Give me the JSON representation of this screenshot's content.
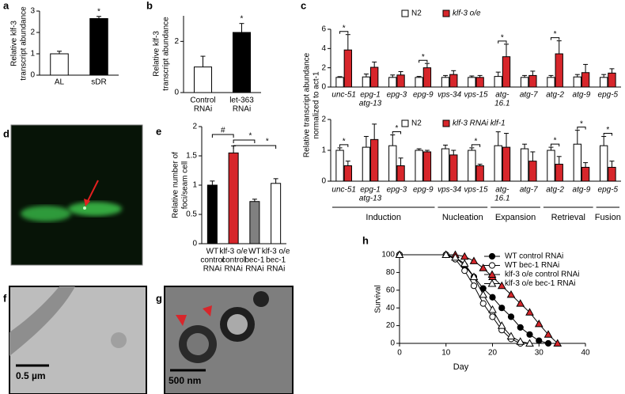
{
  "chart_data": [
    {
      "type": "bar",
      "panel": "a",
      "ylabel": [
        "Relative klf-3",
        "transcript abundance"
      ],
      "categories": [
        "AL",
        "sDR"
      ],
      "values": [
        1.0,
        2.65
      ],
      "errors": [
        0.12,
        0.1
      ],
      "colors": [
        "#ffffff",
        "#000000"
      ],
      "significance": [
        null,
        "*"
      ],
      "ylim": [
        0,
        3
      ],
      "yticks": [
        0,
        1,
        2,
        3
      ]
    },
    {
      "type": "bar",
      "panel": "b",
      "ylabel": [
        "Relative klf-3",
        "transcript abundance"
      ],
      "categories": [
        [
          "Control",
          "RNAi"
        ],
        [
          "let-363",
          "RNAi"
        ]
      ],
      "values": [
        1.0,
        2.35
      ],
      "errors": [
        0.42,
        0.35
      ],
      "colors": [
        "#ffffff",
        "#000000"
      ],
      "significance": [
        null,
        "*"
      ],
      "ylim": [
        0,
        3
      ],
      "yticks": [
        0,
        2
      ]
    },
    {
      "type": "bar",
      "panel": "c",
      "ylabel": [
        "Relative transcript abundance",
        "normalized to act-1"
      ],
      "categories": [
        [
          "unc-51"
        ],
        [
          "epg-1",
          "atg-13"
        ],
        [
          "epg-3"
        ],
        [
          "epg-9"
        ],
        [
          "vps-34"
        ],
        [
          "vps-15"
        ],
        [
          "atg-",
          "16.1"
        ],
        [
          "atg-7"
        ],
        [
          "atg-2"
        ],
        [
          "atg-9"
        ],
        [
          "epg-5"
        ]
      ],
      "series": [
        {
          "name": "N2",
          "color": "#ffffff",
          "values": [
            1.0,
            1.05,
            1.0,
            1.0,
            1.0,
            1.0,
            1.1,
            1.0,
            1.0,
            1.05,
            1.0
          ],
          "errors": [
            0.08,
            0.3,
            0.25,
            0.1,
            0.2,
            0.15,
            0.45,
            0.2,
            0.2,
            0.25,
            0.3
          ]
        },
        {
          "name": "klf-3 o/e",
          "color": "#d7262b",
          "values": [
            3.85,
            2.05,
            1.25,
            2.0,
            1.3,
            1.0,
            3.15,
            1.2,
            3.45,
            1.5,
            1.45
          ],
          "errors": [
            1.6,
            0.55,
            0.35,
            0.45,
            0.4,
            0.2,
            1.3,
            0.45,
            1.35,
            0.85,
            0.45
          ]
        }
      ],
      "significance": [
        "*",
        null,
        null,
        "*",
        null,
        null,
        "*",
        null,
        "*",
        null,
        null
      ],
      "ylim": [
        0,
        6
      ],
      "yticks": [
        0,
        2,
        4,
        6
      ]
    },
    {
      "type": "bar",
      "categories": [
        [
          "unc-51"
        ],
        [
          "epg-1",
          "atg-13"
        ],
        [
          "epg-3"
        ],
        [
          "epg-9"
        ],
        [
          "vps-34"
        ],
        [
          "vps-15"
        ],
        [
          "atg-",
          "16.1"
        ],
        [
          "atg-7"
        ],
        [
          "atg-2"
        ],
        [
          "atg-9"
        ],
        [
          "epg-5"
        ]
      ],
      "series": [
        {
          "name": "N2",
          "color": "#ffffff",
          "values": [
            1.0,
            1.1,
            1.15,
            1.0,
            1.05,
            1.0,
            1.15,
            1.05,
            1.0,
            1.2,
            1.15
          ],
          "errors": [
            0.08,
            0.35,
            0.35,
            0.05,
            0.12,
            0.08,
            0.45,
            0.15,
            0.1,
            0.45,
            0.3
          ]
        },
        {
          "name": "klf-3 RNAi klf-1",
          "color": "#d7262b",
          "values": [
            0.5,
            1.35,
            0.5,
            0.95,
            0.85,
            0.5,
            1.1,
            0.65,
            0.55,
            0.45,
            0.45
          ],
          "errors": [
            0.15,
            0.5,
            0.25,
            0.05,
            0.15,
            0.05,
            0.45,
            0.3,
            0.25,
            0.15,
            0.2
          ]
        }
      ],
      "significance": [
        "*",
        null,
        "*",
        null,
        null,
        "*",
        null,
        null,
        "*",
        "*",
        "*"
      ],
      "groups": [
        {
          "label": "Induction",
          "between": [
            0,
            3
          ]
        },
        {
          "label": "Nucleation",
          "between": [
            4,
            5
          ]
        },
        {
          "label": "Expansion",
          "between": [
            6,
            7
          ]
        },
        {
          "label": "Retrieval",
          "between": [
            8,
            9
          ]
        },
        {
          "label": "Fusion",
          "between": [
            10,
            10
          ]
        }
      ],
      "ylim": [
        0,
        2
      ],
      "yticks": [
        0,
        1,
        2
      ]
    },
    {
      "type": "bar",
      "panel": "e",
      "ylabel": [
        "Relative number of",
        "foci/seam cell"
      ],
      "categories": [
        [
          "WT",
          "control",
          "RNAi"
        ],
        [
          "klf-3 o/e",
          "control",
          "RNAi"
        ],
        [
          "WT",
          "bec-1",
          "RNAi"
        ],
        [
          "klf-3 o/e",
          "bec-1",
          "RNAi"
        ]
      ],
      "values": [
        1.0,
        1.55,
        0.72,
        1.03
      ],
      "errors": [
        0.07,
        0.12,
        0.04,
        0.08
      ],
      "colors": [
        "#000000",
        "#d7262b",
        "#808080",
        "#ffffff"
      ],
      "comparisons": [
        {
          "label": "#",
          "between": [
            0,
            1
          ]
        },
        {
          "label": "*",
          "between": [
            1,
            2
          ]
        },
        {
          "label": "*",
          "between": [
            1,
            3
          ]
        }
      ],
      "ylim": [
        0,
        2
      ],
      "yticks": [
        0,
        0.5,
        1,
        1.5,
        2
      ]
    },
    {
      "type": "line",
      "panel": "h",
      "ylabel": "Survival",
      "xlabel": "Day",
      "series": [
        {
          "name": "WT control RNAi",
          "color": "#000000",
          "marker": "circle",
          "x": [
            0,
            10,
            12,
            14,
            16,
            18,
            20,
            22,
            24,
            26,
            28,
            30,
            32
          ],
          "values": [
            100,
            100,
            97,
            88,
            75,
            62,
            52,
            40,
            30,
            18,
            10,
            3,
            0
          ]
        },
        {
          "name": "WT bec-1 RNAi",
          "color": "#ffffff",
          "marker": "circle",
          "x": [
            0,
            10,
            12,
            14,
            16,
            18,
            20,
            22,
            24,
            26
          ],
          "values": [
            100,
            100,
            95,
            82,
            65,
            45,
            30,
            15,
            5,
            0
          ]
        },
        {
          "name": "klf-3 o/e control RNAi",
          "color": "#d7262b",
          "marker": "triangle",
          "x": [
            0,
            10,
            12,
            14,
            16,
            18,
            20,
            22,
            24,
            26,
            28,
            30,
            32,
            34
          ],
          "values": [
            100,
            100,
            100,
            98,
            93,
            85,
            75,
            65,
            55,
            45,
            35,
            22,
            10,
            0
          ]
        },
        {
          "name": "klf-3 o/e bec-1 RNAi",
          "color": "#ffffff",
          "marker": "triangle",
          "x": [
            0,
            10,
            12,
            14,
            16,
            18,
            20,
            22,
            24,
            26,
            28
          ],
          "values": [
            100,
            100,
            97,
            90,
            75,
            55,
            38,
            20,
            8,
            2,
            0
          ]
        }
      ],
      "xlim": [
        0,
        40
      ],
      "xticks": [
        0,
        10,
        20,
        30,
        40
      ],
      "ylim": [
        0,
        100
      ],
      "yticks": [
        0,
        20,
        40,
        60,
        80,
        100
      ]
    }
  ],
  "images": [
    {
      "panel": "d"
    },
    {
      "panel": "f",
      "scale_bar": "0.5 µm"
    },
    {
      "panel": "g",
      "scale_bar": "500 nm"
    }
  ]
}
